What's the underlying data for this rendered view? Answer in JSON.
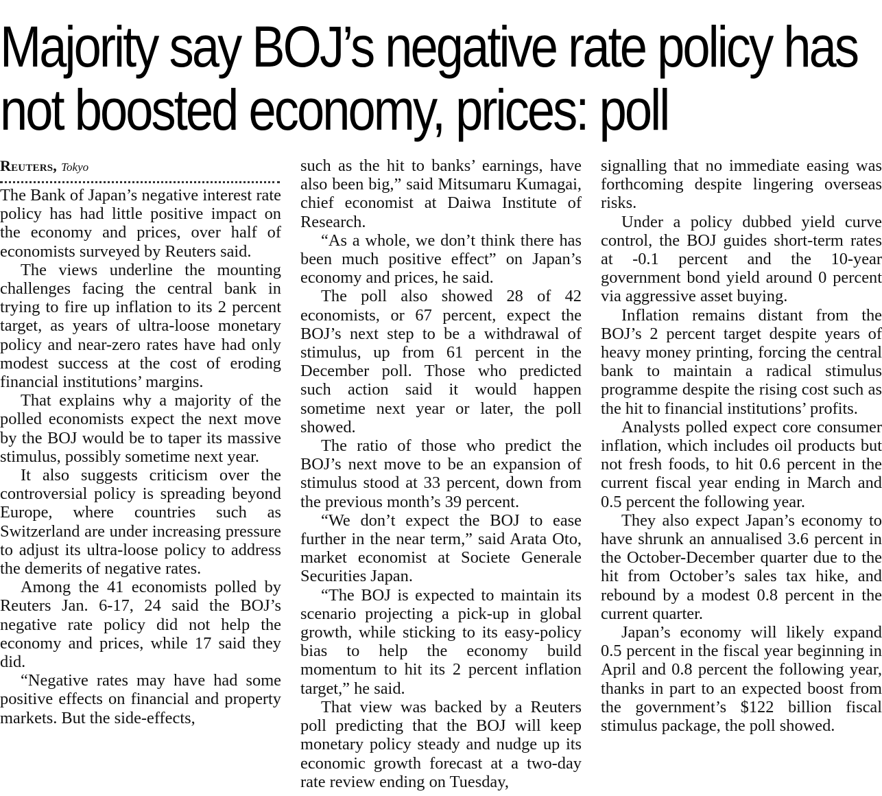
{
  "headline": {
    "line1": "Majority say BOJ’s negative rate policy has",
    "line2": "not boosted economy, prices: poll"
  },
  "byline": {
    "agency": "Reuters,",
    "city": "Tokyo"
  },
  "body": {
    "col1": [
      "The Bank of Japan’s negative interest rate policy has had little positive impact on the economy and prices, over half of economists surveyed by Reuters said.",
      "The views underline the mounting challenges facing the central bank in trying to fire up inflation to its 2 percent target, as years of ultra-loose monetary policy and near-zero rates have had only modest success at the cost of eroding financial institutions’ margins.",
      "That explains why a majority of the polled economists expect the next move by the BOJ would be to taper its massive stimulus, possibly sometime next year.",
      "It also suggests criticism over the controversial policy is spreading beyond Europe, where countries such as Switzerland are under increasing pressure to adjust its ultra-loose policy to address the demerits of negative rates.",
      "Among the 41 economists polled by Reuters Jan. 6-17, 24 said the BOJ’s negative rate policy did not help the economy and prices, while 17 said they did.",
      "“Negative rates may have had some positive effects on financial and property markets. But the side-effects,"
    ],
    "col2": [
      "such as the hit to banks’ earnings, have also been big,” said Mitsumaru Kumagai, chief economist at Daiwa Institute of Research.",
      "“As a whole, we don’t think there has been much positive effect” on Japan’s economy and prices, he said.",
      "The poll also showed 28 of 42 economists, or 67 percent, expect the BOJ’s next step to be a withdrawal of stimulus, up from 61 percent in the December poll. Those who predicted such action said it would happen sometime next year or later, the poll showed.",
      "The ratio of those who predict the BOJ’s next move to be an expansion of stimulus stood at 33 percent, down from the previous month’s 39 percent.",
      "“We don’t expect the BOJ to ease further in the near term,” said Arata Oto, market economist at Societe Generale Securities Japan.",
      "“The BOJ is expected to maintain its scenario projecting a pick-up in global growth, while sticking to its easy-policy bias to help the economy build momentum to hit its 2 percent inflation target,” he said.",
      "That view was backed by a Reuters poll predicting that the BOJ will keep monetary policy steady and nudge up its economic growth forecast at a two-day rate review ending on Tuesday,"
    ],
    "col3": [
      "signalling that no immediate easing was forthcoming despite lingering overseas risks.",
      "Under a policy dubbed yield curve control, the BOJ guides short-term rates at -0.1 percent and the 10-year government bond yield around 0 percent via aggressive asset buying.",
      "Inflation remains distant from the BOJ’s 2 percent target despite years of heavy money printing, forcing the central bank to maintain a radical stimulus programme despite the rising cost such as the hit to financial institutions’ profits.",
      "Analysts polled expect core consumer inflation, which includes oil products but not fresh foods, to hit 0.6 percent in the current fiscal year ending in March and 0.5 percent the following year.",
      "They also expect Japan’s economy to have shrunk an annualised 3.6 percent in the October-December quarter due to the hit from October’s sales tax hike, and rebound by a modest 0.8 percent in the current quarter.",
      "Japan’s economy will likely expand 0.5 percent in the fiscal year beginning in April and 0.8 percent the following year, thanks in part to an expected boost from the government’s $122 billion fiscal stimulus package, the poll showed."
    ]
  }
}
